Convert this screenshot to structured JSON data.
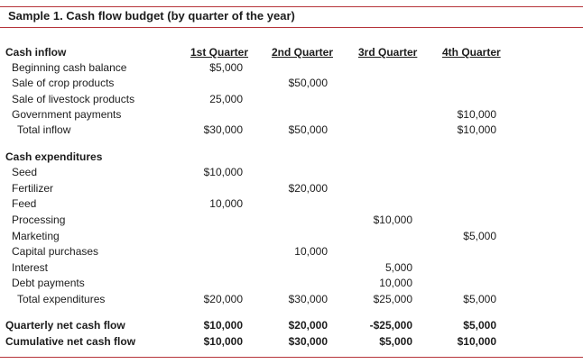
{
  "title": "Sample 1. Cash flow budget (by quarter of the year)",
  "columns": {
    "label": "Cash inflow",
    "q1": "1st Quarter",
    "q2": "2nd Quarter",
    "q3": "3rd Quarter",
    "q4": "4th Quarter"
  },
  "inflow": {
    "beginning": {
      "label": "Beginning cash balance",
      "q1": "$5,000",
      "q2": "",
      "q3": "",
      "q4": ""
    },
    "crop": {
      "label": "Sale of crop products",
      "q1": "",
      "q2": "$50,000",
      "q3": "",
      "q4": ""
    },
    "livestock": {
      "label": "Sale of livestock products",
      "q1": "25,000",
      "q2": "",
      "q3": "",
      "q4": ""
    },
    "government": {
      "label": "Government payments",
      "q1": "",
      "q2": "",
      "q3": "",
      "q4": "$10,000"
    },
    "total": {
      "label": "Total inflow",
      "q1": "$30,000",
      "q2": "$50,000",
      "q3": "",
      "q4": "$10,000"
    }
  },
  "expenditures": {
    "heading": "Cash expenditures",
    "seed": {
      "label": "Seed",
      "q1": "$10,000",
      "q2": "",
      "q3": "",
      "q4": ""
    },
    "fertilizer": {
      "label": "Fertilizer",
      "q1": "",
      "q2": "$20,000",
      "q3": "",
      "q4": ""
    },
    "feed": {
      "label": "Feed",
      "q1": "10,000",
      "q2": "",
      "q3": "",
      "q4": ""
    },
    "processing": {
      "label": "Processing",
      "q1": "",
      "q2": "",
      "q3": "$10,000",
      "q4": ""
    },
    "marketing": {
      "label": "Marketing",
      "q1": "",
      "q2": "",
      "q3": "",
      "q4": "$5,000"
    },
    "capital": {
      "label": "Capital purchases",
      "q1": "",
      "q2": "10,000",
      "q3": "",
      "q4": ""
    },
    "interest": {
      "label": "Interest",
      "q1": "",
      "q2": "",
      "q3": "5,000",
      "q4": ""
    },
    "debt": {
      "label": "Debt payments",
      "q1": "",
      "q2": "",
      "q3": "10,000",
      "q4": ""
    },
    "total": {
      "label": "Total expenditures",
      "q1": "$20,000",
      "q2": "$30,000",
      "q3": "$25,000",
      "q4": "$5,000"
    }
  },
  "net": {
    "quarterly": {
      "label": "Quarterly net cash flow",
      "q1": "$10,000",
      "q2": "$20,000",
      "q3": "-$25,000",
      "q4": "$5,000"
    },
    "cumulative": {
      "label": "Cumulative net cash flow",
      "q1": "$10,000",
      "q2": "$30,000",
      "q3": "$5,000",
      "q4": "$10,000"
    }
  },
  "colors": {
    "rule": "#b5343a",
    "text": "#1c1c1c"
  }
}
